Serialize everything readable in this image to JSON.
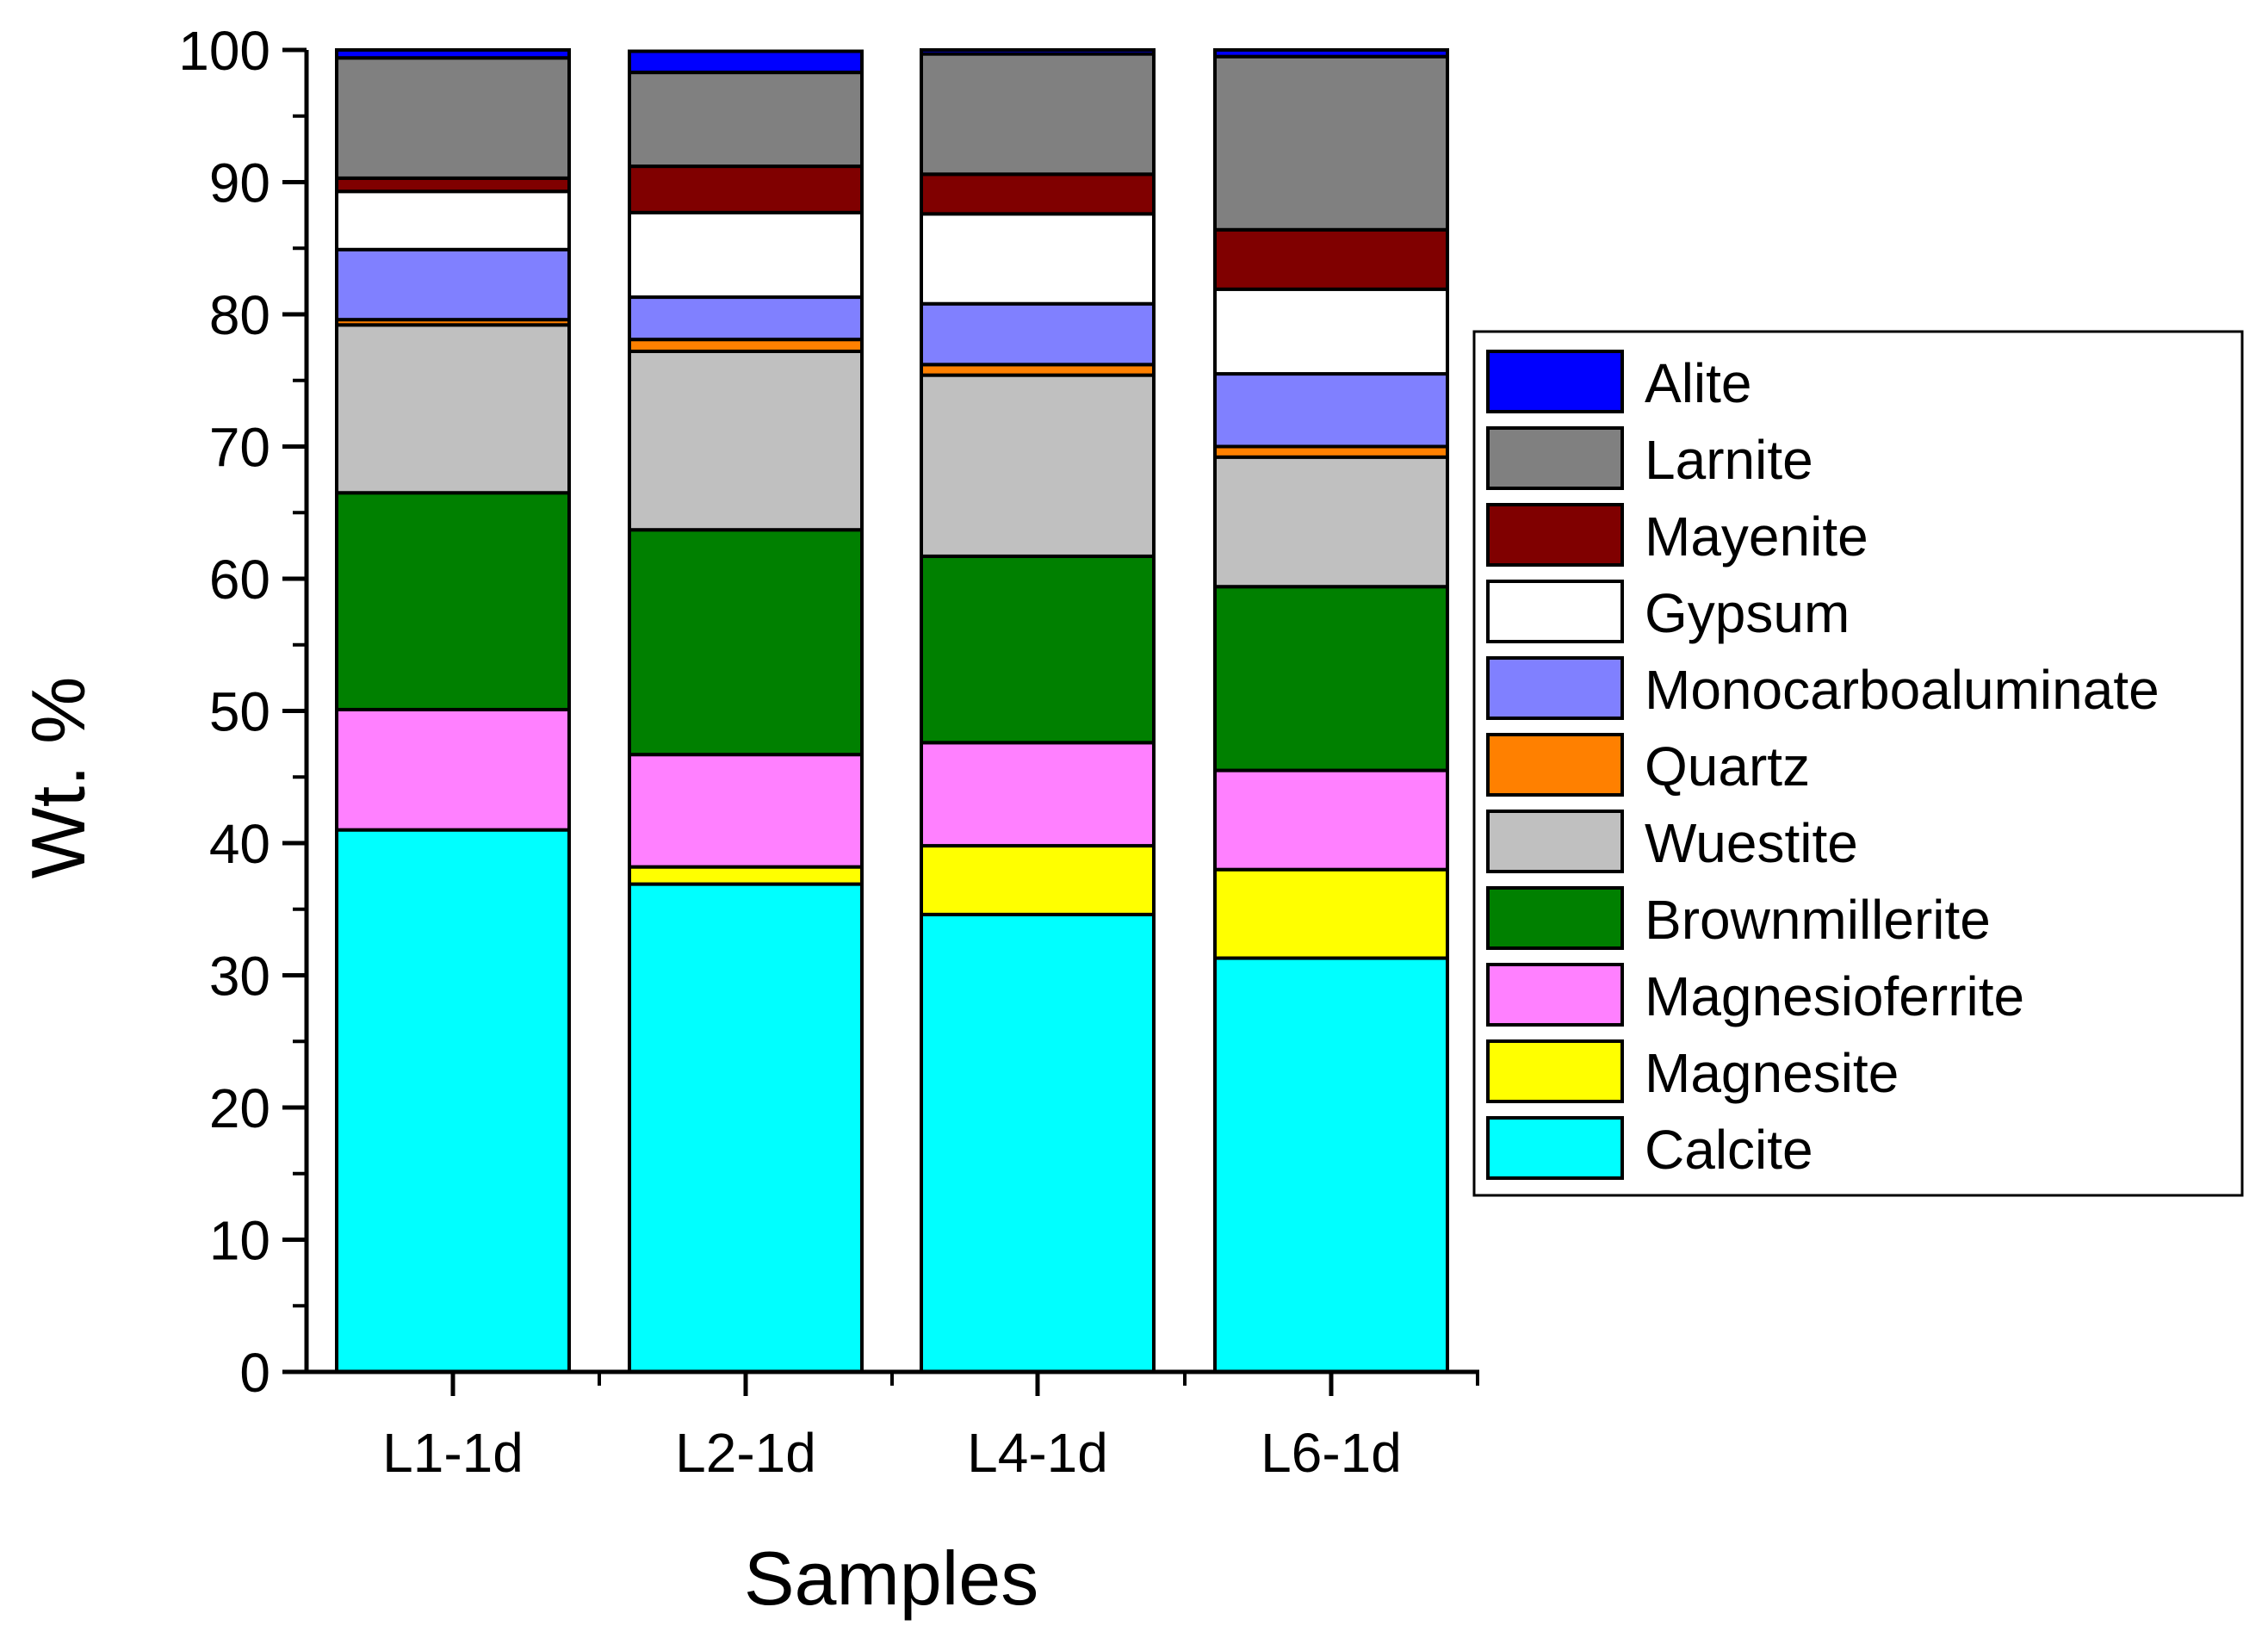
{
  "chart_data": {
    "type": "bar",
    "stacked": true,
    "title": "",
    "xlabel": "Samples",
    "ylabel": "Wt. %",
    "ylim": [
      0,
      100
    ],
    "yticks": [
      "0",
      "10",
      "20",
      "30",
      "40",
      "50",
      "60",
      "70",
      "80",
      "90",
      "100"
    ],
    "categories": [
      "L1-1d",
      "L2-1d",
      "L4-1d",
      "L6-1d"
    ],
    "legend_position": "right",
    "series": [
      {
        "name": "Calcite",
        "color": "#00FFFF",
        "values": [
          41.0,
          36.9,
          34.6,
          31.3
        ]
      },
      {
        "name": "Magnesite",
        "color": "#FFFF00",
        "values": [
          0.0,
          1.3,
          5.2,
          6.7
        ]
      },
      {
        "name": "Magnesioferrite",
        "color": "#FF80FF",
        "values": [
          9.1,
          8.5,
          7.8,
          7.5
        ]
      },
      {
        "name": "Brownmillerite",
        "color": "#008000",
        "values": [
          16.4,
          17.0,
          14.1,
          13.9
        ]
      },
      {
        "name": "Wuestite",
        "color": "#C0C0C0",
        "values": [
          12.7,
          13.5,
          13.7,
          9.8
        ]
      },
      {
        "name": "Quartz",
        "color": "#FF8000",
        "values": [
          0.4,
          0.9,
          0.8,
          0.8
        ]
      },
      {
        "name": "Monocarboaluminate",
        "color": "#8080FF",
        "values": [
          5.3,
          3.2,
          4.6,
          5.5
        ]
      },
      {
        "name": "Gypsum",
        "color": "#FFFFFF",
        "values": [
          4.4,
          6.4,
          6.8,
          6.4
        ]
      },
      {
        "name": "Mayenite",
        "color": "#800000",
        "values": [
          1.0,
          3.5,
          3.0,
          4.5
        ]
      },
      {
        "name": "Larnite",
        "color": "#808080",
        "values": [
          9.1,
          7.1,
          9.1,
          13.1
        ]
      },
      {
        "name": "Alite",
        "color": "#0000FF",
        "values": [
          0.6,
          1.6,
          0.3,
          0.5
        ]
      }
    ],
    "legend_order": [
      "Alite",
      "Larnite",
      "Mayenite",
      "Gypsum",
      "Monocarboaluminate",
      "Quartz",
      "Wuestite",
      "Brownmillerite",
      "Magnesioferrite",
      "Magnesite",
      "Calcite"
    ]
  }
}
